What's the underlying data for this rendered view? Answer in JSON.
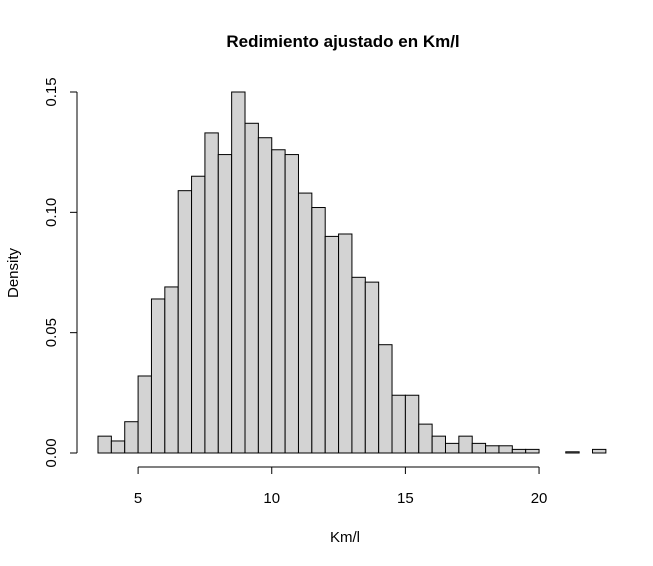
{
  "chart_data": {
    "type": "bar",
    "title": "Redimiento ajustado en Km/l",
    "xlabel": "Km/l",
    "ylabel": "Density",
    "bin_width": 0.5,
    "bin_edges_start": 3.5,
    "values": [
      0.007,
      0.005,
      0.013,
      0.032,
      0.064,
      0.069,
      0.109,
      0.115,
      0.133,
      0.124,
      0.15,
      0.137,
      0.131,
      0.126,
      0.124,
      0.108,
      0.102,
      0.09,
      0.091,
      0.073,
      0.071,
      0.045,
      0.024,
      0.024,
      0.012,
      0.007,
      0.004,
      0.007,
      0.004,
      0.003,
      0.003,
      0.0015,
      0.0015,
      0,
      0,
      0.0005,
      0,
      0.0015
    ],
    "xlim": [
      3.5,
      22
    ],
    "ylim": [
      0,
      0.15
    ],
    "x_ticks": [
      "5",
      "10",
      "15",
      "20"
    ],
    "y_ticks": [
      "0.00",
      "0.05",
      "0.10",
      "0.15"
    ],
    "bar_color": "#d3d3d3",
    "grid": false,
    "legend": "none"
  }
}
